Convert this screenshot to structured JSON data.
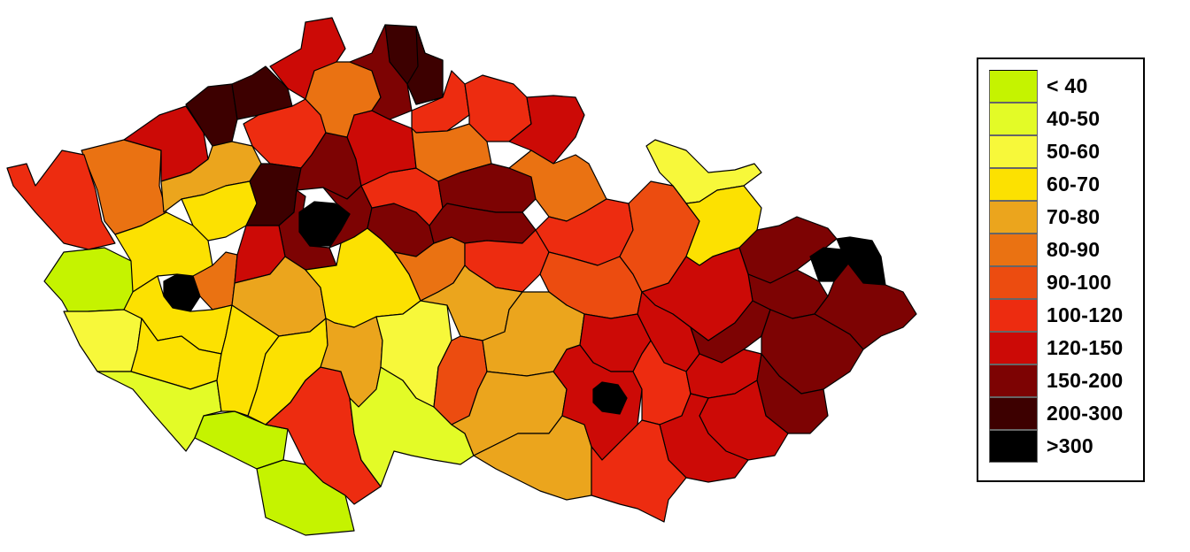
{
  "legend": {
    "items": [
      {
        "label": "< 40",
        "color": "#c5f300"
      },
      {
        "label": "40-50",
        "color": "#e3fb27"
      },
      {
        "label": "50-60",
        "color": "#f7f83a"
      },
      {
        "label": "60-70",
        "color": "#fce101"
      },
      {
        "label": "70-80",
        "color": "#eba51d"
      },
      {
        "label": "80-90",
        "color": "#ea7212"
      },
      {
        "label": "90-100",
        "color": "#ec4c10"
      },
      {
        "label": "100-120",
        "color": "#ed2c10"
      },
      {
        "label": "120-150",
        "color": "#cc0a06"
      },
      {
        "label": "150-200",
        "color": "#7d0303"
      },
      {
        "label": "200-300",
        "color": "#3d0000"
      },
      {
        "label": ">300",
        "color": "#000000"
      }
    ]
  },
  "map": {
    "regions": [
      {
        "name": "cheb",
        "bin": 0
      },
      {
        "name": "tachov",
        "bin": 2
      },
      {
        "name": "domazlice",
        "bin": 3
      },
      {
        "name": "klatovy",
        "bin": 1
      },
      {
        "name": "prachatice",
        "bin": 0
      },
      {
        "name": "cesky-krumlov",
        "bin": 0
      },
      {
        "name": "karlovy-vary",
        "bin": 5
      },
      {
        "name": "sokolov",
        "bin": 7
      },
      {
        "name": "chomutov",
        "bin": 8
      },
      {
        "name": "most",
        "bin": 10
      },
      {
        "name": "teplice",
        "bin": 10
      },
      {
        "name": "usti-nad-labem",
        "bin": 10
      },
      {
        "name": "decin",
        "bin": 8
      },
      {
        "name": "litomerice",
        "bin": 7
      },
      {
        "name": "louny",
        "bin": 4
      },
      {
        "name": "rakovnik",
        "bin": 3
      },
      {
        "name": "plzen-sever",
        "bin": 3
      },
      {
        "name": "plzen-mesto",
        "bin": 11
      },
      {
        "name": "plzen-jih",
        "bin": 3
      },
      {
        "name": "rokycany",
        "bin": 5
      },
      {
        "name": "kladno",
        "bin": 10
      },
      {
        "name": "melnik",
        "bin": 9
      },
      {
        "name": "praha",
        "bin": 11
      },
      {
        "name": "praha-zapad",
        "bin": 9
      },
      {
        "name": "praha-vychod",
        "bin": 9
      },
      {
        "name": "beroun",
        "bin": 8
      },
      {
        "name": "pribram",
        "bin": 4
      },
      {
        "name": "strakonice",
        "bin": 3
      },
      {
        "name": "pisek",
        "bin": 3
      },
      {
        "name": "ceske-budejovice",
        "bin": 7
      },
      {
        "name": "jindrichuv-hradec",
        "bin": 1
      },
      {
        "name": "tabor",
        "bin": 4
      },
      {
        "name": "benesov",
        "bin": 3
      },
      {
        "name": "pelhrimov",
        "bin": 2
      },
      {
        "name": "ceska-lipa",
        "bin": 5
      },
      {
        "name": "liberec",
        "bin": 9
      },
      {
        "name": "jablonec",
        "bin": 10
      },
      {
        "name": "semily",
        "bin": 7
      },
      {
        "name": "mlada-boleslav",
        "bin": 8
      },
      {
        "name": "nymburk",
        "bin": 7
      },
      {
        "name": "kolin",
        "bin": 9
      },
      {
        "name": "kutna-hora",
        "bin": 5
      },
      {
        "name": "jicin",
        "bin": 5
      },
      {
        "name": "trutnov",
        "bin": 7
      },
      {
        "name": "nachod",
        "bin": 8
      },
      {
        "name": "hradec-kralove",
        "bin": 9
      },
      {
        "name": "rychnov",
        "bin": 5
      },
      {
        "name": "pardubice",
        "bin": 9
      },
      {
        "name": "chrudim",
        "bin": 7
      },
      {
        "name": "usti-nad-orlici",
        "bin": 7
      },
      {
        "name": "svitavy",
        "bin": 6
      },
      {
        "name": "havlickuv-brod",
        "bin": 4
      },
      {
        "name": "zdar",
        "bin": 4
      },
      {
        "name": "jihlava",
        "bin": 6
      },
      {
        "name": "trebic",
        "bin": 4
      },
      {
        "name": "znojmo",
        "bin": 4
      },
      {
        "name": "jesenik",
        "bin": 2
      },
      {
        "name": "sumperk",
        "bin": 6
      },
      {
        "name": "bruntal",
        "bin": 3
      },
      {
        "name": "opava",
        "bin": 9
      },
      {
        "name": "ostrava",
        "bin": 11
      },
      {
        "name": "karvina",
        "bin": 11
      },
      {
        "name": "frydek-mistek",
        "bin": 9
      },
      {
        "name": "novy-jicin",
        "bin": 9
      },
      {
        "name": "olomouc",
        "bin": 8
      },
      {
        "name": "prostejov",
        "bin": 8
      },
      {
        "name": "prerov",
        "bin": 9
      },
      {
        "name": "blansko",
        "bin": 8
      },
      {
        "name": "brno-mesto",
        "bin": 11
      },
      {
        "name": "brno-venkov",
        "bin": 8
      },
      {
        "name": "vyskov",
        "bin": 7
      },
      {
        "name": "kromeriz",
        "bin": 8
      },
      {
        "name": "zlin",
        "bin": 9
      },
      {
        "name": "vsetin",
        "bin": 9
      },
      {
        "name": "uherske-hradiste",
        "bin": 8
      },
      {
        "name": "hodonin",
        "bin": 8
      },
      {
        "name": "breclav",
        "bin": 7
      }
    ]
  }
}
